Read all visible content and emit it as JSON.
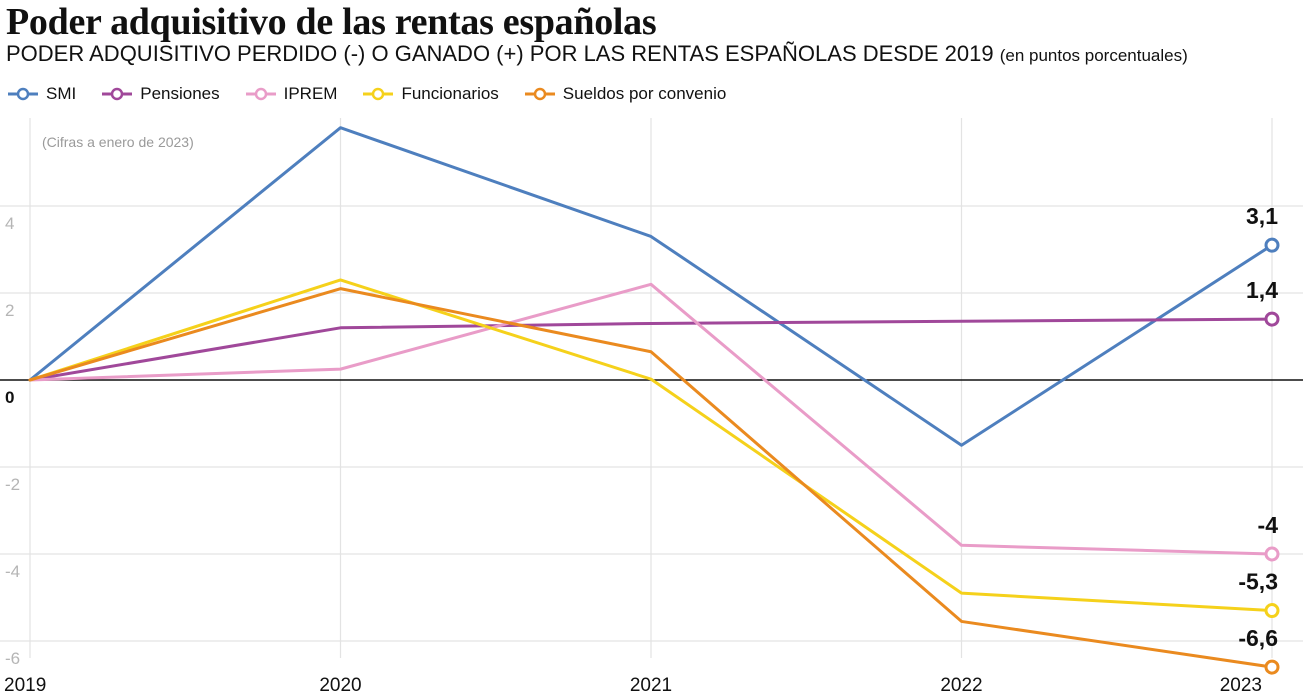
{
  "header": {
    "title": "Poder adquisitivo de las rentas españolas",
    "subtitle": "PODER ADQUISITIVO PERDIDO (-) O GANADO (+) POR LAS RENTAS ESPAÑOLAS DESDE 2019",
    "subtitle_unit": "(en puntos porcentuales)"
  },
  "chart_data": {
    "type": "line",
    "title": "Poder adquisitivo de las rentas españolas",
    "subtitle": "PODER ADQUISITIVO PERDIDO (-) O GANADO (+) POR LAS RENTAS ESPAÑOLAS DESDE 2019 (en puntos porcentuales)",
    "note": "(Cifras a enero de 2023)",
    "x": [
      "2019",
      "2020",
      "2021",
      "2022",
      "2023"
    ],
    "ylim": [
      -6.6,
      5.8
    ],
    "yticks": [
      4,
      2,
      0,
      -2,
      -4,
      -6
    ],
    "ytick_labels": [
      "4",
      "2",
      "0",
      "-2",
      "-4",
      "-6"
    ],
    "grid": true,
    "legend_position": "top-left",
    "series": [
      {
        "name": "SMI",
        "color": "#4e7fbe",
        "values": [
          0,
          5.8,
          3.3,
          -1.5,
          3.1
        ],
        "end_label": "3,1"
      },
      {
        "name": "Pensiones",
        "color": "#a0489a",
        "values": [
          0,
          1.2,
          1.3,
          1.35,
          1.4
        ],
        "end_label": "1,4"
      },
      {
        "name": "IPREM",
        "color": "#e99cc8",
        "values": [
          0,
          0.25,
          2.2,
          -3.8,
          -4.0
        ],
        "end_label": "-4"
      },
      {
        "name": "Funcionarios",
        "color": "#f5d11b",
        "values": [
          0,
          2.3,
          0.02,
          -4.9,
          -5.3
        ],
        "end_label": "-5,3"
      },
      {
        "name": "Sueldos por convenio",
        "color": "#ea8a1f",
        "values": [
          0,
          2.1,
          0.65,
          -5.55,
          -6.6
        ],
        "end_label": "-6,6"
      }
    ]
  }
}
